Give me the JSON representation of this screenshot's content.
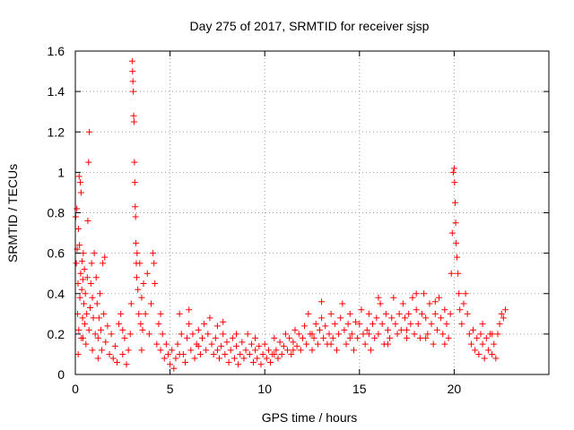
{
  "chart_data": {
    "type": "scatter",
    "title": "Day 275 of 2017, SRMTID for receiver sjsp",
    "xlabel": "GPS time / hours",
    "ylabel": "SRMTID / TECUs",
    "xlim": [
      0,
      25
    ],
    "ylim": [
      0,
      1.6
    ],
    "xticks": [
      0,
      5,
      10,
      15,
      20
    ],
    "xtick_labels": [
      "0",
      "5",
      "10",
      "15",
      "20"
    ],
    "yticks": [
      0,
      0.2,
      0.4,
      0.6,
      0.8,
      1,
      1.2,
      1.4,
      1.6
    ],
    "ytick_labels": [
      "0",
      "0.2",
      "0.4",
      "0.6",
      "0.8",
      "1",
      "1.2",
      "1.4",
      "1.6"
    ],
    "grid": true,
    "marker": "+",
    "color": "#ff0000",
    "series": [
      {
        "name": "SRMTID",
        "points": [
          [
            0.02,
            0.78
          ],
          [
            0.05,
            0.55
          ],
          [
            0.08,
            0.82
          ],
          [
            0.1,
            0.62
          ],
          [
            0.12,
            0.3
          ],
          [
            0.14,
            0.45
          ],
          [
            0.16,
            0.72
          ],
          [
            0.18,
            0.22
          ],
          [
            0.2,
            0.98
          ],
          [
            0.22,
            0.64
          ],
          [
            0.24,
            0.38
          ],
          [
            0.26,
            0.95
          ],
          [
            0.28,
            0.5
          ],
          [
            0.3,
            0.9
          ],
          [
            0.32,
            0.18
          ],
          [
            0.34,
            0.42
          ],
          [
            0.36,
            0.56
          ],
          [
            0.38,
            0.28
          ],
          [
            0.4,
            0.47
          ],
          [
            0.42,
            0.6
          ],
          [
            0.45,
            0.35
          ],
          [
            0.48,
            0.52
          ],
          [
            0.5,
            0.25
          ],
          [
            0.53,
            0.4
          ],
          [
            0.56,
            0.15
          ],
          [
            0.6,
            0.3
          ],
          [
            0.63,
            0.48
          ],
          [
            0.66,
            0.76
          ],
          [
            0.7,
            1.05
          ],
          [
            0.72,
            0.22
          ],
          [
            0.74,
            1.2
          ],
          [
            0.78,
            0.33
          ],
          [
            0.82,
            0.45
          ],
          [
            0.86,
            0.55
          ],
          [
            0.9,
            0.38
          ],
          [
            0.95,
            0.28
          ],
          [
            1.0,
            0.6
          ],
          [
            1.05,
            0.2
          ],
          [
            1.1,
            0.48
          ],
          [
            1.15,
            0.35
          ],
          [
            1.2,
            0.18
          ],
          [
            1.25,
            0.28
          ],
          [
            1.3,
            0.4
          ],
          [
            1.35,
            0.22
          ],
          [
            1.4,
            0.12
          ],
          [
            1.45,
            0.55
          ],
          [
            1.5,
            0.3
          ],
          [
            1.55,
            0.58
          ],
          [
            1.6,
            0.16
          ],
          [
            1.7,
            0.24
          ],
          [
            1.8,
            0.1
          ],
          [
            1.9,
            0.2
          ],
          [
            2.0,
            0.08
          ],
          [
            2.1,
            0.14
          ],
          [
            2.2,
            0.06
          ],
          [
            2.3,
            0.25
          ],
          [
            2.4,
            0.3
          ],
          [
            2.5,
            0.1
          ],
          [
            2.6,
            0.18
          ],
          [
            2.7,
            0.05
          ],
          [
            2.8,
            0.12
          ],
          [
            2.9,
            0.2
          ],
          [
            2.95,
            0.35
          ],
          [
            3.0,
            1.55
          ],
          [
            3.02,
            1.5
          ],
          [
            3.04,
            1.45
          ],
          [
            3.06,
            1.4
          ],
          [
            3.08,
            1.28
          ],
          [
            3.1,
            1.25
          ],
          [
            3.12,
            1.05
          ],
          [
            3.14,
            0.95
          ],
          [
            3.16,
            0.83
          ],
          [
            3.18,
            0.78
          ],
          [
            3.2,
            0.65
          ],
          [
            3.22,
            0.55
          ],
          [
            3.24,
            0.48
          ],
          [
            3.26,
            0.6
          ],
          [
            3.3,
            0.42
          ],
          [
            3.35,
            0.3
          ],
          [
            3.4,
            0.55
          ],
          [
            3.45,
            0.25
          ],
          [
            3.5,
            0.38
          ],
          [
            3.55,
            0.22
          ],
          [
            3.6,
            0.45
          ],
          [
            3.7,
            0.3
          ],
          [
            3.8,
            0.5
          ],
          [
            3.9,
            0.2
          ],
          [
            4.0,
            0.35
          ],
          [
            4.1,
            0.6
          ],
          [
            4.15,
            0.55
          ],
          [
            4.2,
            0.45
          ],
          [
            4.3,
            0.15
          ],
          [
            4.4,
            0.25
          ],
          [
            4.5,
            0.12
          ],
          [
            4.6,
            0.2
          ],
          [
            4.7,
            0.08
          ],
          [
            4.8,
            0.15
          ],
          [
            4.9,
            0.1
          ],
          [
            5.0,
            0.05
          ],
          [
            5.1,
            0.12
          ],
          [
            5.2,
            0.03
          ],
          [
            5.3,
            0.08
          ],
          [
            5.4,
            0.15
          ],
          [
            5.5,
            0.3
          ],
          [
            5.6,
            0.2
          ],
          [
            5.7,
            0.1
          ],
          [
            5.8,
            0.06
          ],
          [
            5.9,
            0.18
          ],
          [
            6.0,
            0.25
          ],
          [
            6.1,
            0.12
          ],
          [
            6.2,
            0.2
          ],
          [
            6.3,
            0.08
          ],
          [
            6.4,
            0.15
          ],
          [
            6.5,
            0.22
          ],
          [
            6.6,
            0.1
          ],
          [
            6.7,
            0.18
          ],
          [
            6.8,
            0.25
          ],
          [
            6.9,
            0.12
          ],
          [
            7.0,
            0.2
          ],
          [
            7.1,
            0.28
          ],
          [
            7.2,
            0.15
          ],
          [
            7.3,
            0.1
          ],
          [
            7.4,
            0.18
          ],
          [
            7.5,
            0.24
          ],
          [
            7.6,
            0.08
          ],
          [
            7.7,
            0.14
          ],
          [
            7.8,
            0.2
          ],
          [
            7.9,
            0.1
          ],
          [
            8.0,
            0.16
          ],
          [
            8.1,
            0.06
          ],
          [
            8.2,
            0.12
          ],
          [
            8.3,
            0.18
          ],
          [
            8.4,
            0.08
          ],
          [
            8.5,
            0.14
          ],
          [
            8.6,
            0.05
          ],
          [
            8.7,
            0.1
          ],
          [
            8.8,
            0.16
          ],
          [
            8.9,
            0.08
          ],
          [
            9.0,
            0.12
          ],
          [
            9.1,
            0.2
          ],
          [
            9.2,
            0.1
          ],
          [
            9.3,
            0.15
          ],
          [
            9.4,
            0.06
          ],
          [
            9.5,
            0.12
          ],
          [
            9.6,
            0.08
          ],
          [
            9.7,
            0.14
          ],
          [
            9.8,
            0.05
          ],
          [
            9.9,
            0.1
          ],
          [
            10.0,
            0.15
          ],
          [
            10.1,
            0.08
          ],
          [
            10.2,
            0.12
          ],
          [
            10.3,
            0.06
          ],
          [
            10.4,
            0.1
          ],
          [
            10.5,
            0.18
          ],
          [
            10.6,
            0.12
          ],
          [
            10.7,
            0.08
          ],
          [
            10.8,
            0.16
          ],
          [
            10.9,
            0.1
          ],
          [
            11.0,
            0.14
          ],
          [
            11.1,
            0.2
          ],
          [
            11.2,
            0.12
          ],
          [
            11.3,
            0.18
          ],
          [
            11.4,
            0.1
          ],
          [
            11.5,
            0.16
          ],
          [
            11.6,
            0.22
          ],
          [
            11.7,
            0.14
          ],
          [
            11.8,
            0.2
          ],
          [
            11.9,
            0.12
          ],
          [
            12.0,
            0.18
          ],
          [
            12.1,
            0.24
          ],
          [
            12.2,
            0.15
          ],
          [
            12.3,
            0.3
          ],
          [
            12.4,
            0.2
          ],
          [
            12.5,
            0.12
          ],
          [
            12.6,
            0.18
          ],
          [
            12.7,
            0.25
          ],
          [
            12.8,
            0.15
          ],
          [
            12.9,
            0.22
          ],
          [
            13.0,
            0.28
          ],
          [
            13.1,
            0.18
          ],
          [
            13.2,
            0.24
          ],
          [
            13.3,
            0.15
          ],
          [
            13.4,
            0.2
          ],
          [
            13.5,
            0.3
          ],
          [
            13.6,
            0.18
          ],
          [
            13.7,
            0.25
          ],
          [
            13.8,
            0.12
          ],
          [
            13.9,
            0.2
          ],
          [
            14.0,
            0.28
          ],
          [
            14.1,
            0.35
          ],
          [
            14.2,
            0.22
          ],
          [
            14.3,
            0.15
          ],
          [
            14.4,
            0.25
          ],
          [
            14.5,
            0.3
          ],
          [
            14.6,
            0.2
          ],
          [
            14.7,
            0.12
          ],
          [
            14.8,
            0.26
          ],
          [
            14.9,
            0.18
          ],
          [
            15.0,
            0.25
          ],
          [
            15.1,
            0.32
          ],
          [
            15.2,
            0.2
          ],
          [
            15.3,
            0.15
          ],
          [
            15.4,
            0.22
          ],
          [
            15.5,
            0.3
          ],
          [
            15.6,
            0.12
          ],
          [
            15.7,
            0.25
          ],
          [
            15.8,
            0.18
          ],
          [
            15.9,
            0.28
          ],
          [
            16.0,
            0.2
          ],
          [
            16.1,
            0.35
          ],
          [
            16.2,
            0.25
          ],
          [
            16.3,
            0.15
          ],
          [
            16.4,
            0.3
          ],
          [
            16.5,
            0.22
          ],
          [
            16.6,
            0.18
          ],
          [
            16.7,
            0.28
          ],
          [
            16.8,
            0.38
          ],
          [
            16.9,
            0.25
          ],
          [
            17.0,
            0.2
          ],
          [
            17.1,
            0.3
          ],
          [
            17.2,
            0.22
          ],
          [
            17.3,
            0.35
          ],
          [
            17.4,
            0.28
          ],
          [
            17.5,
            0.18
          ],
          [
            17.6,
            0.3
          ],
          [
            17.7,
            0.25
          ],
          [
            17.8,
            0.38
          ],
          [
            17.9,
            0.2
          ],
          [
            18.0,
            0.32
          ],
          [
            18.1,
            0.25
          ],
          [
            18.2,
            0.18
          ],
          [
            18.3,
            0.3
          ],
          [
            18.4,
            0.4
          ],
          [
            18.5,
            0.28
          ],
          [
            18.6,
            0.2
          ],
          [
            18.7,
            0.35
          ],
          [
            18.8,
            0.25
          ],
          [
            18.9,
            0.15
          ],
          [
            19.0,
            0.3
          ],
          [
            19.1,
            0.22
          ],
          [
            19.2,
            0.38
          ],
          [
            19.3,
            0.28
          ],
          [
            19.4,
            0.2
          ],
          [
            19.5,
            0.32
          ],
          [
            19.6,
            0.25
          ],
          [
            19.7,
            0.18
          ],
          [
            19.8,
            0.3
          ],
          [
            19.85,
            0.5
          ],
          [
            19.9,
            0.7
          ],
          [
            19.95,
            1.0
          ],
          [
            20.0,
            1.02
          ],
          [
            20.02,
            0.95
          ],
          [
            20.05,
            0.85
          ],
          [
            20.08,
            0.75
          ],
          [
            20.1,
            0.65
          ],
          [
            20.15,
            0.58
          ],
          [
            20.2,
            0.5
          ],
          [
            20.25,
            0.4
          ],
          [
            20.3,
            0.32
          ],
          [
            20.4,
            0.25
          ],
          [
            20.5,
            0.35
          ],
          [
            20.6,
            0.4
          ],
          [
            20.7,
            0.3
          ],
          [
            20.8,
            0.2
          ],
          [
            20.9,
            0.15
          ],
          [
            21.0,
            0.22
          ],
          [
            21.1,
            0.12
          ],
          [
            21.2,
            0.18
          ],
          [
            21.3,
            0.1
          ],
          [
            21.4,
            0.2
          ],
          [
            21.5,
            0.15
          ],
          [
            21.6,
            0.08
          ],
          [
            21.7,
            0.18
          ],
          [
            21.8,
            0.12
          ],
          [
            21.9,
            0.2
          ],
          [
            22.0,
            0.1
          ],
          [
            22.1,
            0.15
          ],
          [
            22.2,
            0.08
          ],
          [
            22.3,
            0.2
          ],
          [
            22.4,
            0.25
          ],
          [
            22.5,
            0.3
          ],
          [
            22.6,
            0.28
          ],
          [
            22.7,
            0.32
          ],
          [
            0.15,
            0.1
          ],
          [
            0.4,
            0.18
          ],
          [
            0.9,
            0.12
          ],
          [
            1.2,
            0.08
          ],
          [
            2.5,
            0.22
          ],
          [
            3.5,
            0.12
          ],
          [
            4.5,
            0.3
          ],
          [
            5.5,
            0.1
          ],
          [
            6.5,
            0.14
          ],
          [
            7.5,
            0.12
          ],
          [
            8.5,
            0.2
          ],
          [
            9.5,
            0.18
          ],
          [
            10.5,
            0.1
          ],
          [
            11.5,
            0.12
          ],
          [
            12.5,
            0.2
          ],
          [
            13.5,
            0.15
          ],
          [
            14.5,
            0.18
          ],
          [
            15.5,
            0.2
          ],
          [
            16.5,
            0.15
          ],
          [
            17.5,
            0.22
          ],
          [
            18.5,
            0.18
          ],
          [
            19.5,
            0.15
          ],
          [
            21.5,
            0.25
          ],
          [
            22.0,
            0.2
          ],
          [
            6.0,
            0.32
          ],
          [
            7.8,
            0.26
          ],
          [
            13.0,
            0.36
          ],
          [
            16.0,
            0.38
          ],
          [
            18.0,
            0.4
          ],
          [
            19.0,
            0.36
          ]
        ]
      }
    ]
  }
}
